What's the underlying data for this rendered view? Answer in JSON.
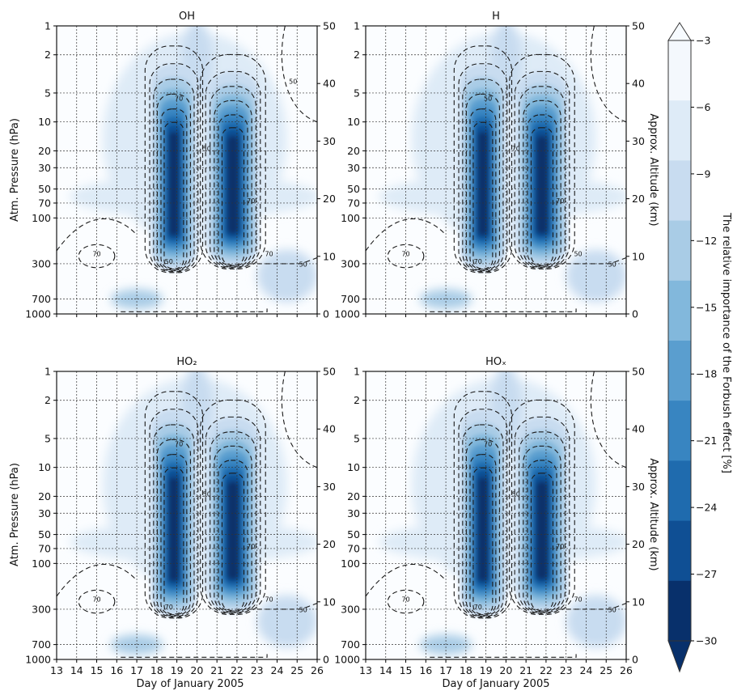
{
  "figure": {
    "xlabel": "Day of January 2005",
    "ylabel_left": "Atm. Pressure (hPa)",
    "ylabel_right": "Approx. Altitude (km)",
    "colorbar_label": "The relative importance of the Forbush effect [%]"
  },
  "chart_data": [
    {
      "type": "heatmap",
      "title": "OH",
      "x_ticks": [
        13,
        14,
        15,
        16,
        17,
        18,
        19,
        20,
        21,
        22,
        23,
        24,
        25,
        26
      ],
      "y_scale": "log",
      "y_ticks_pressure_hPa": [
        1,
        2,
        5,
        10,
        20,
        30,
        50,
        70,
        100,
        300,
        700,
        1000
      ],
      "y_ticks_altitude_km": [
        0,
        10,
        20,
        30,
        40,
        50
      ],
      "contour_labels": [
        "70",
        "50",
        "70",
        "50",
        "70",
        "50",
        "70",
        "50"
      ],
      "grid": true
    },
    {
      "type": "heatmap",
      "title": "H",
      "x_ticks": [
        13,
        14,
        15,
        16,
        17,
        18,
        19,
        20,
        21,
        22,
        23,
        24,
        25,
        26
      ],
      "y_scale": "log",
      "y_ticks_pressure_hPa": [
        1,
        2,
        5,
        10,
        20,
        30,
        50,
        70,
        100,
        300,
        700,
        1000
      ],
      "y_ticks_altitude_km": [
        0,
        10,
        20,
        30,
        40,
        50
      ],
      "contour_labels": [
        "70",
        "70",
        "50",
        "70",
        "50",
        "50",
        "70"
      ],
      "grid": true
    },
    {
      "type": "heatmap",
      "title": "HO₂",
      "x_ticks": [
        13,
        14,
        15,
        16,
        17,
        18,
        19,
        20,
        21,
        22,
        23,
        24,
        25,
        26
      ],
      "y_scale": "log",
      "y_ticks_pressure_hPa": [
        1,
        2,
        5,
        10,
        20,
        30,
        50,
        70,
        100,
        300,
        700,
        1000
      ],
      "y_ticks_altitude_km": [
        0,
        10,
        20,
        30,
        40,
        50
      ],
      "contour_labels": [
        "70",
        "70",
        "70",
        "50",
        "70",
        "50",
        "70"
      ],
      "grid": true
    },
    {
      "type": "heatmap",
      "title": "HOₓ",
      "x_ticks": [
        13,
        14,
        15,
        16,
        17,
        18,
        19,
        20,
        21,
        22,
        23,
        24,
        25,
        26
      ],
      "y_scale": "log",
      "y_ticks_pressure_hPa": [
        1,
        2,
        5,
        10,
        20,
        30,
        50,
        70,
        100,
        300,
        700,
        1000
      ],
      "y_ticks_altitude_km": [
        0,
        10,
        20,
        30,
        40,
        50
      ],
      "contour_labels": [
        "70",
        "70",
        "70",
        "50",
        "70",
        "50",
        "70"
      ],
      "grid": true
    }
  ],
  "colorbar": {
    "ticks": [
      -3,
      -6,
      -9,
      -12,
      -15,
      -18,
      -21,
      -24,
      -27,
      -30
    ],
    "levels": [
      -3,
      -6,
      -9,
      -12,
      -15,
      -18,
      -21,
      -24,
      -27,
      -30
    ],
    "colors": [
      "#f4f8fd",
      "#deebf7",
      "#c8dcf0",
      "#a9cce6",
      "#82b8dc",
      "#5a9ecf",
      "#3885c1",
      "#1f6bae",
      "#0f4f94",
      "#08306b"
    ],
    "extend": "both"
  }
}
